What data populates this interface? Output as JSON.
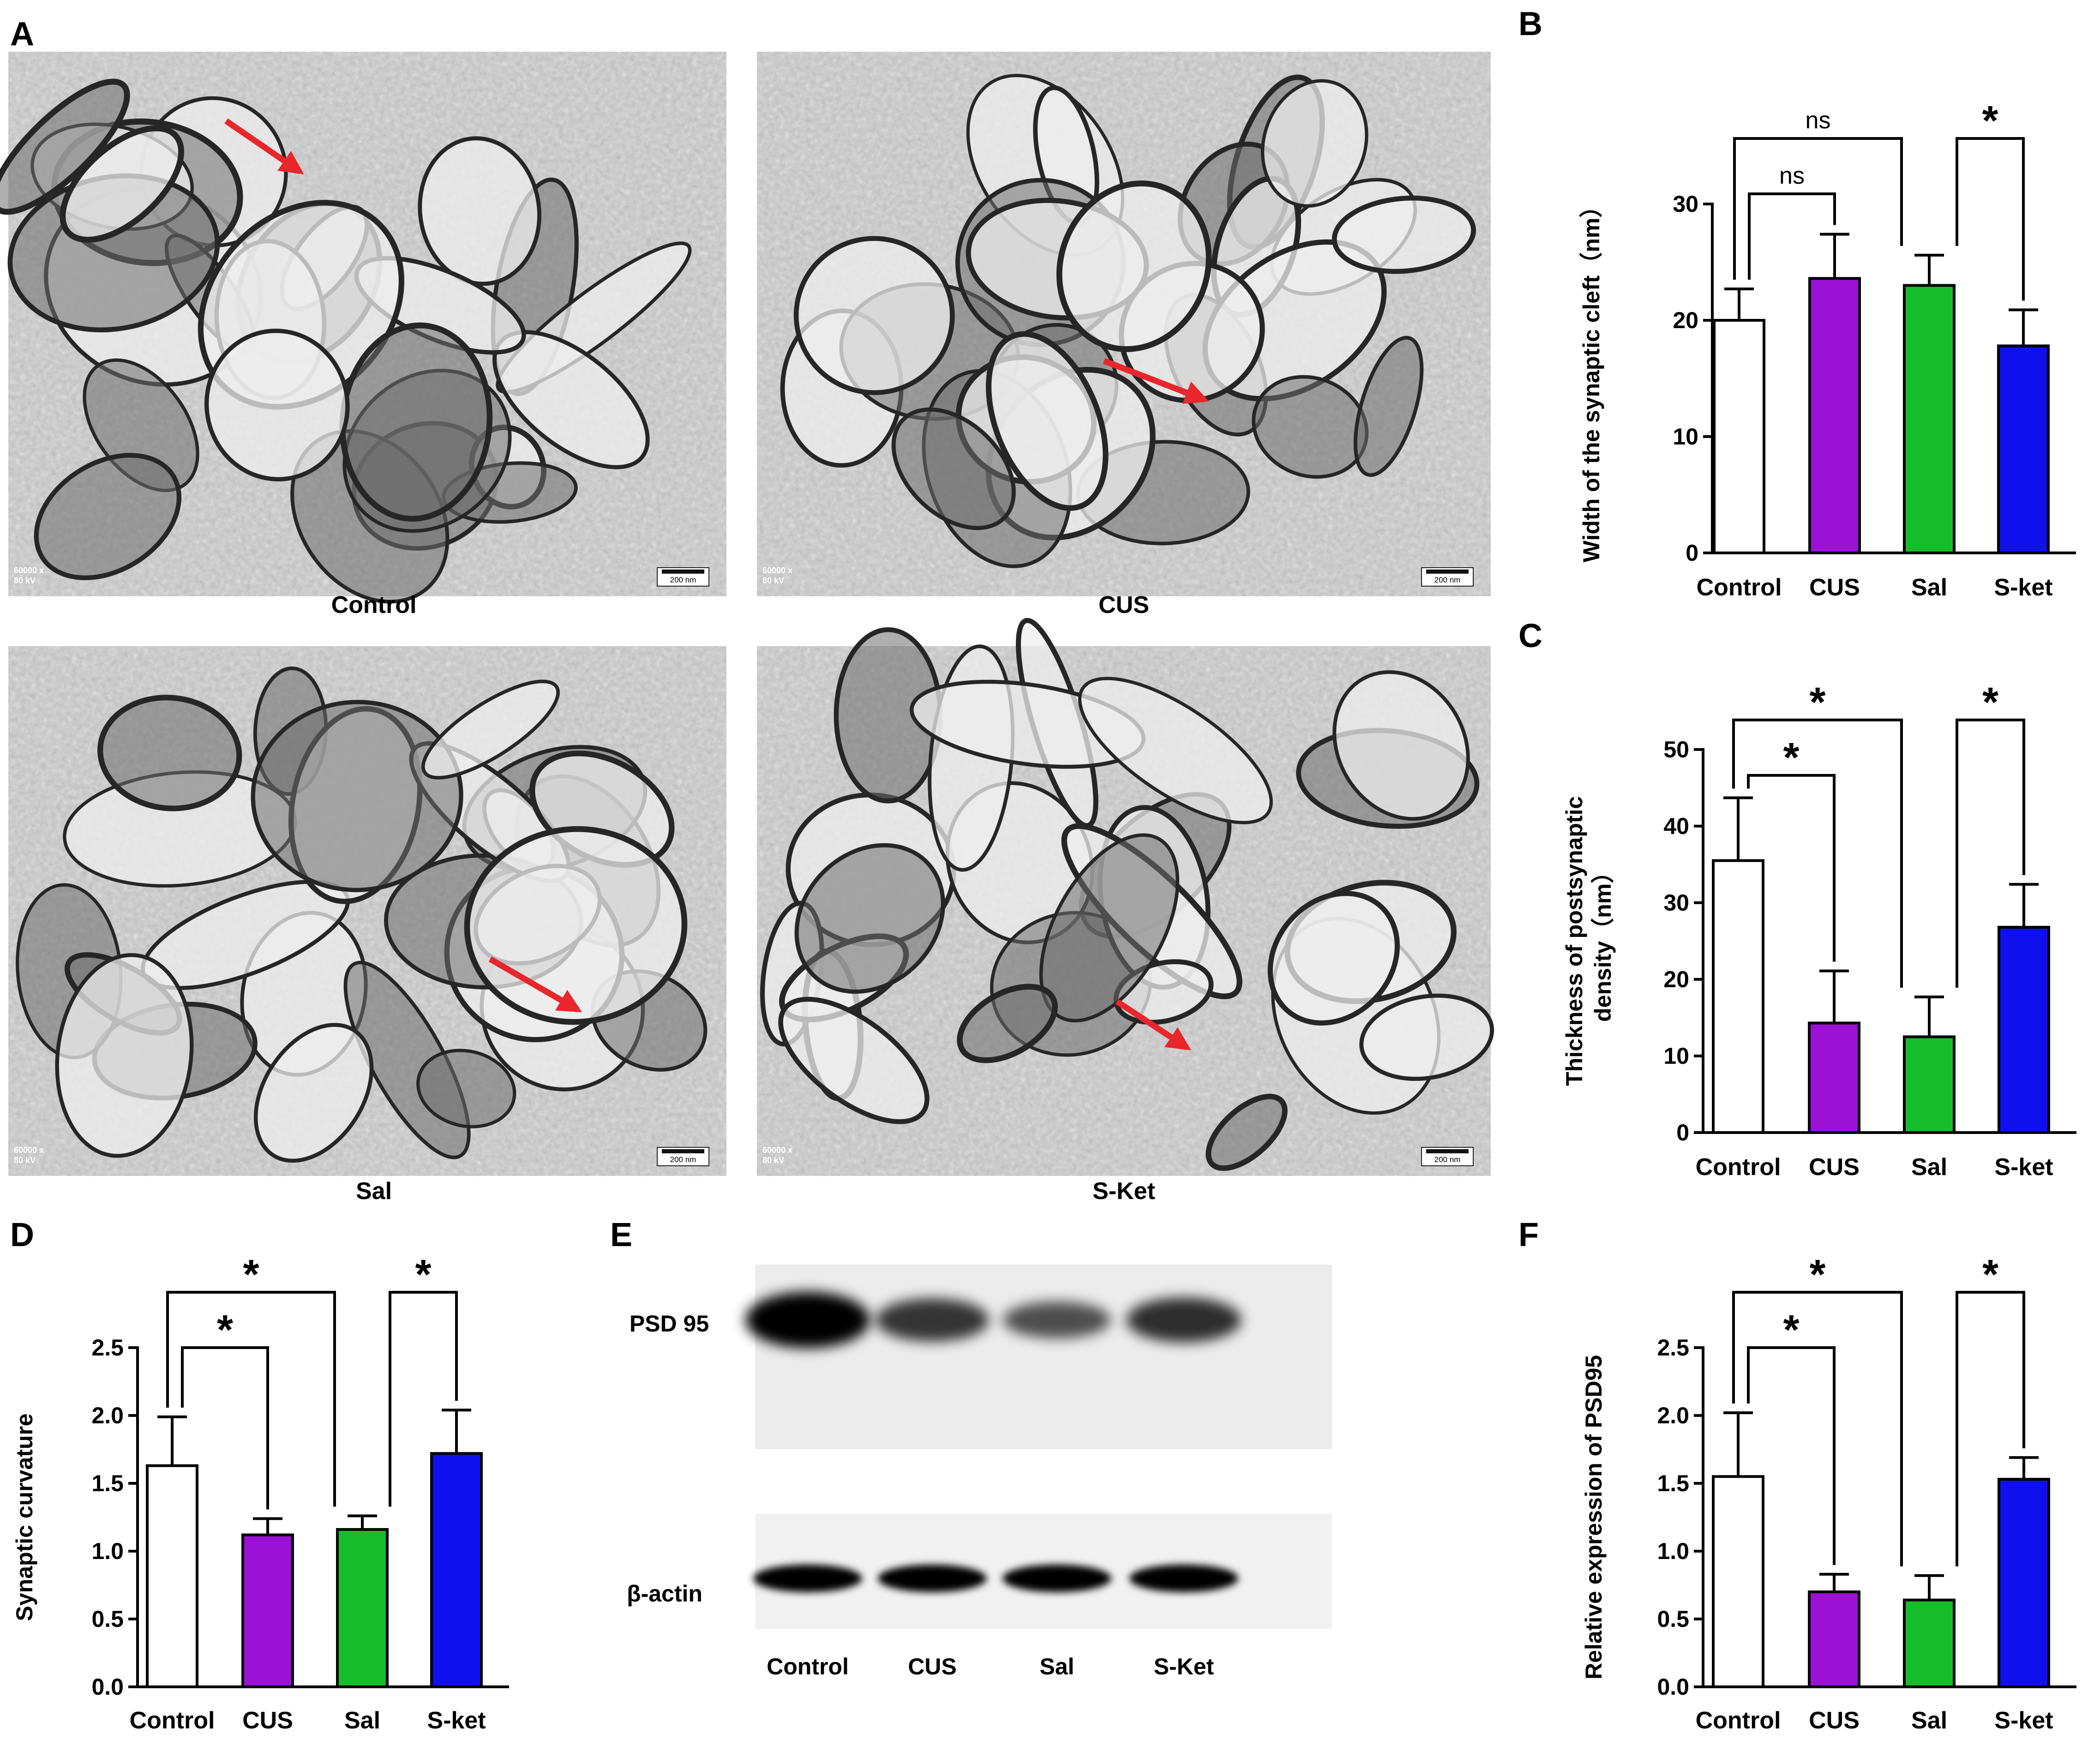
{
  "panel_letters": {
    "A": "A",
    "B": "B",
    "C": "C",
    "D": "D",
    "E": "E",
    "F": "F"
  },
  "tem": {
    "captions": [
      "Control",
      "CUS",
      "Sal",
      "S-Ket"
    ],
    "scale_bar_label": "200 nm",
    "magnification": "60000 x",
    "voltage": "80 kV",
    "arrow_color": "#e8262b"
  },
  "western": {
    "row_labels": [
      "PSD 95",
      "β-actin"
    ],
    "lane_labels": [
      "Control",
      "CUS",
      "Sal",
      "S-Ket"
    ],
    "psd95_relative_intensity": [
      1.0,
      0.6,
      0.4,
      0.65
    ]
  },
  "colors": {
    "Control": "#ffffff",
    "CUS": "#9b11d6",
    "Sal": "#16bd2a",
    "S-ket": "#1010ee"
  },
  "chart_data": [
    {
      "panel": "B",
      "type": "bar",
      "categories": [
        "Control",
        "CUS",
        "Sal",
        "S-ket"
      ],
      "values": [
        20.0,
        23.6,
        23.0,
        17.8
      ],
      "errors": [
        2.7,
        3.8,
        2.6,
        3.1
      ],
      "ylabel": "Width of the synaptic cleft（nm）",
      "ylim": [
        0,
        30
      ],
      "yticks": [
        0,
        10,
        20,
        30
      ],
      "significance": [
        {
          "from": 0,
          "to": 1,
          "label": "ns"
        },
        {
          "from": 0,
          "to": 2,
          "label": "ns"
        },
        {
          "from": 2,
          "to": 3,
          "label": "*"
        }
      ]
    },
    {
      "panel": "C",
      "type": "bar",
      "categories": [
        "Control",
        "CUS",
        "Sal",
        "S-ket"
      ],
      "values": [
        35.5,
        14.3,
        12.5,
        26.8
      ],
      "errors": [
        8.2,
        6.8,
        5.2,
        5.6
      ],
      "ylabel": [
        "Thickness of postsynaptic",
        "density（nm）"
      ],
      "ylim": [
        0,
        50
      ],
      "yticks": [
        0,
        10,
        20,
        30,
        40,
        50
      ],
      "significance": [
        {
          "from": 0,
          "to": 1,
          "label": "*"
        },
        {
          "from": 0,
          "to": 2,
          "label": "*"
        },
        {
          "from": 2,
          "to": 3,
          "label": "*"
        }
      ]
    },
    {
      "panel": "D",
      "type": "bar",
      "categories": [
        "Control",
        "CUS",
        "Sal",
        "S-ket"
      ],
      "values": [
        1.63,
        1.12,
        1.16,
        1.72
      ],
      "errors": [
        0.36,
        0.12,
        0.1,
        0.32
      ],
      "ylabel": "Synaptic curvature",
      "ylim": [
        0,
        2.5
      ],
      "yticks": [
        "0.0",
        "0.5",
        "1.0",
        "1.5",
        "2.0",
        "2.5"
      ],
      "significance": [
        {
          "from": 0,
          "to": 1,
          "label": "*"
        },
        {
          "from": 0,
          "to": 2,
          "label": "*"
        },
        {
          "from": 2,
          "to": 3,
          "label": "*"
        }
      ]
    },
    {
      "panel": "F",
      "type": "bar",
      "categories": [
        "Control",
        "CUS",
        "Sal",
        "S-ket"
      ],
      "values": [
        1.55,
        0.7,
        0.64,
        1.53
      ],
      "errors": [
        0.47,
        0.13,
        0.18,
        0.16
      ],
      "ylabel": "Relative expression of PSD95",
      "ylim": [
        0,
        2.5
      ],
      "yticks": [
        "0.0",
        "0.5",
        "1.0",
        "1.5",
        "2.0",
        "2.5"
      ],
      "significance": [
        {
          "from": 0,
          "to": 1,
          "label": "*"
        },
        {
          "from": 0,
          "to": 2,
          "label": "*"
        },
        {
          "from": 2,
          "to": 3,
          "label": "*"
        }
      ]
    }
  ]
}
